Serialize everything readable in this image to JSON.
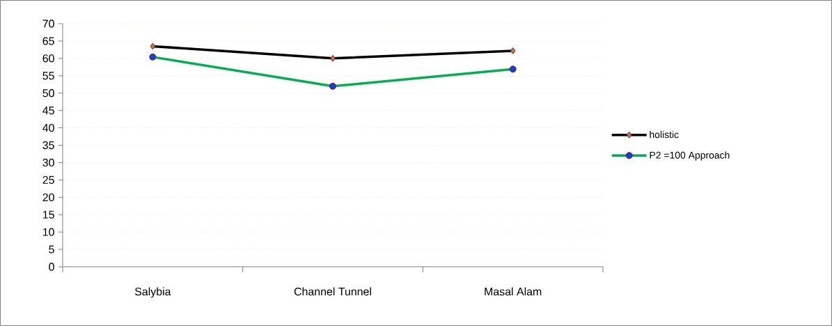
{
  "chart_data": {
    "type": "line",
    "categories": [
      "Salybia",
      "Channel Tunnel",
      "Masal Alam"
    ],
    "series": [
      {
        "name": "holistic",
        "color": "#000000",
        "marker": "diamond",
        "values": [
          63.5,
          60.0,
          62.2
        ]
      },
      {
        "name": "P2  =100 Approach",
        "color": "#00b050",
        "marker": "circle",
        "values": [
          60.4,
          52.0,
          56.9
        ]
      }
    ],
    "ylim": [
      0,
      70
    ],
    "yticks": [
      0,
      5,
      10,
      15,
      20,
      25,
      30,
      35,
      40,
      45,
      50,
      55,
      60,
      65,
      70
    ],
    "grid": "y",
    "legend": "right",
    "line_style": "solid"
  }
}
